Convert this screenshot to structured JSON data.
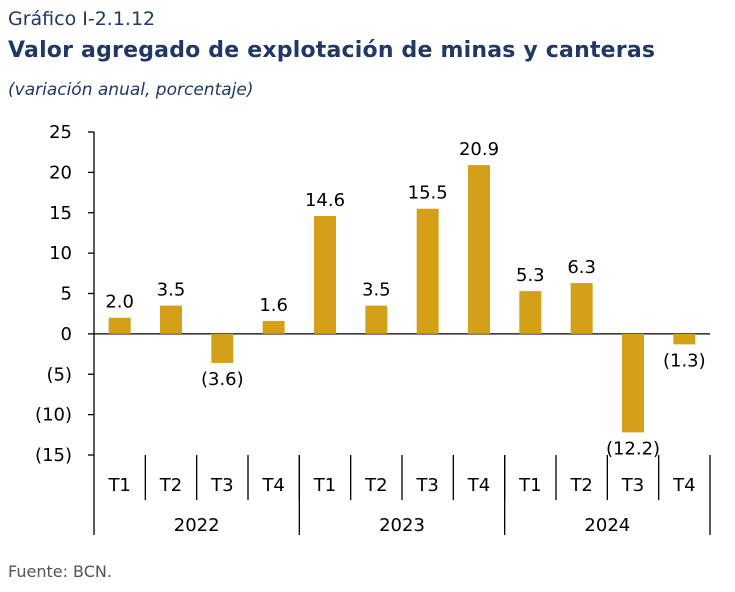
{
  "header": {
    "figure_number": "Gráfico I-2.1.12",
    "title": "Valor agregado de explotación de minas y canteras",
    "subtitle": "(variación anual, porcentaje)"
  },
  "footer": {
    "source": "Fuente: BCN."
  },
  "colors": {
    "bar": "#D4A017",
    "axis": "#000000"
  },
  "chart_data": {
    "type": "bar",
    "title": "Valor agregado de explotación de minas y canteras",
    "subtitle": "(variación anual, porcentaje)",
    "categories": [
      "T1",
      "T2",
      "T3",
      "T4",
      "T1",
      "T2",
      "T3",
      "T4",
      "T1",
      "T2",
      "T3",
      "T4"
    ],
    "groups": [
      {
        "label": "2022",
        "count": 4
      },
      {
        "label": "2023",
        "count": 4
      },
      {
        "label": "2024",
        "count": 4
      }
    ],
    "values": [
      2.0,
      3.5,
      -3.6,
      1.6,
      14.6,
      3.5,
      15.5,
      20.9,
      5.3,
      6.3,
      -12.2,
      -1.3
    ],
    "value_labels": [
      "2.0",
      "3.5",
      "(3.6)",
      "1.6",
      "14.6",
      "3.5",
      "15.5",
      "20.9",
      "5.3",
      "6.3",
      "(12.2)",
      "(1.3)"
    ],
    "ylim": [
      -15,
      25
    ],
    "yticks": [
      25,
      20,
      15,
      10,
      5,
      0,
      -5,
      -10,
      -15
    ],
    "ytick_labels": [
      "25",
      "20",
      "15",
      "10",
      "5",
      "0",
      "(5)",
      "(10)",
      "(15)"
    ],
    "grid": false,
    "legend": "none"
  }
}
